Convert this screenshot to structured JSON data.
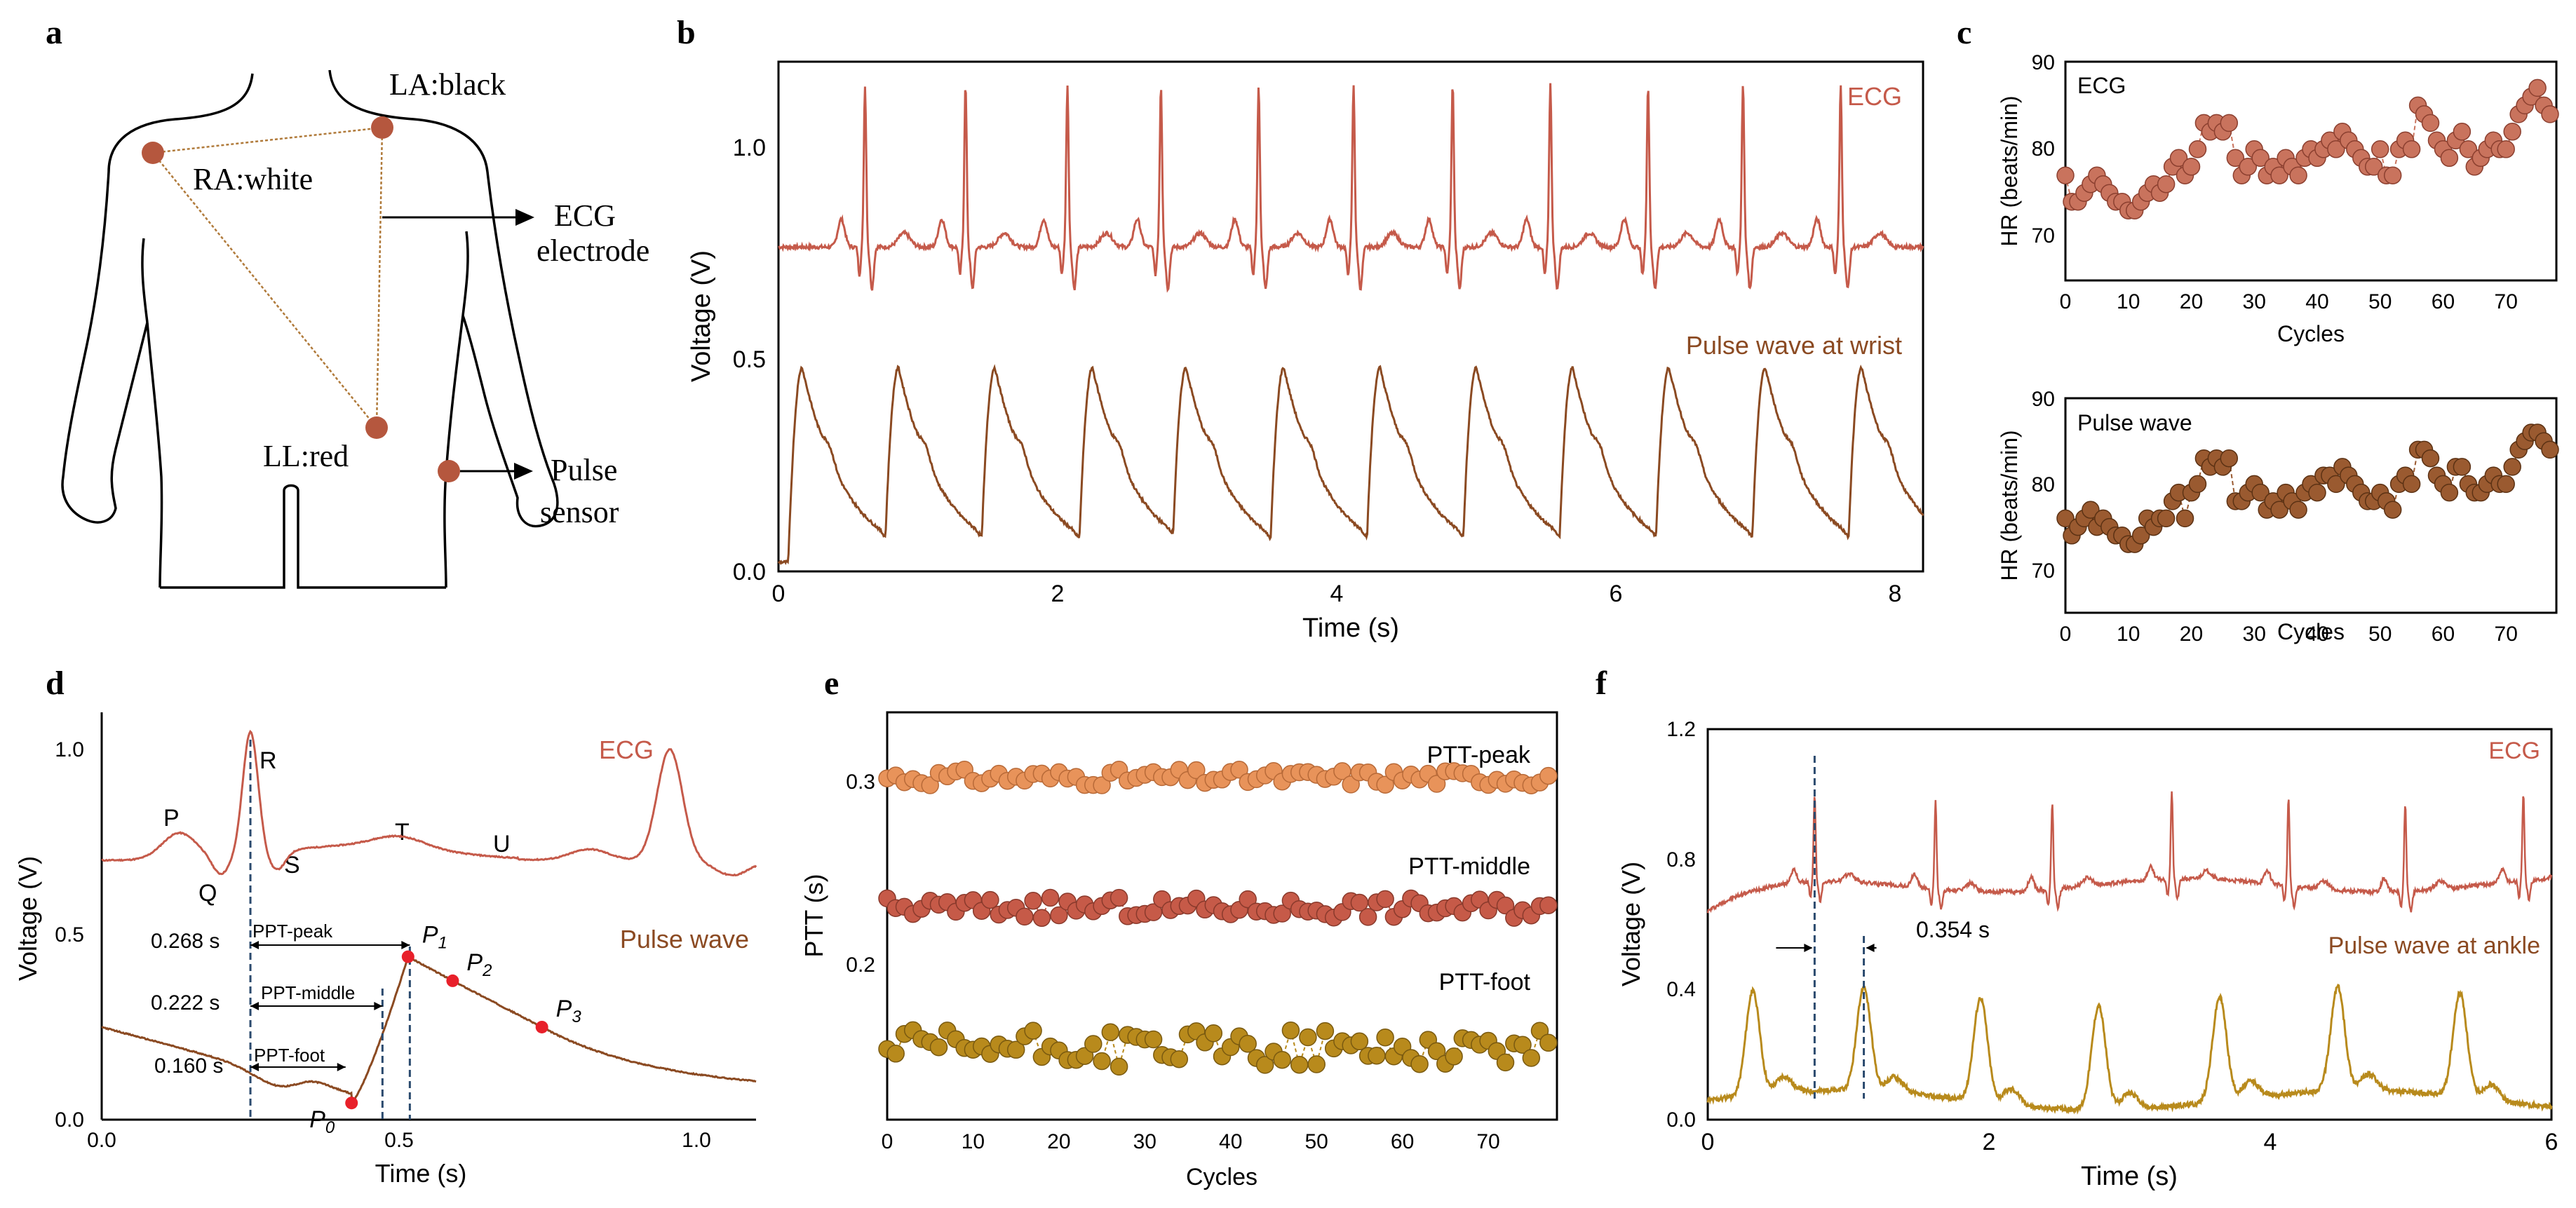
{
  "panels": {
    "a": {
      "letter": "a"
    },
    "b": {
      "letter": "b"
    },
    "c": {
      "letter": "c"
    },
    "d": {
      "letter": "d"
    },
    "e": {
      "letter": "e"
    },
    "f": {
      "letter": "f"
    }
  },
  "colors": {
    "ecg": "#c55a4a",
    "pulse": "#8b4a22",
    "ptt_peak": "#e8935a",
    "ptt_middle": "#c65a48",
    "ptt_foot": "#b88a1c",
    "electrode": "#b5573e",
    "body_line": "#000000",
    "triangle": "#b07a3a",
    "dashed": "#2b4a6e",
    "marker": "#e8202a"
  },
  "body_diagram": {
    "la_label": "LA:black",
    "ra_label": "RA:white",
    "ll_label": "LL:red",
    "ecg_label_1": "ECG",
    "ecg_label_2": "electrode",
    "pulse_label_1": "Pulse",
    "pulse_label_2": "sensor"
  },
  "chart_data": [
    {
      "id": "b",
      "type": "line",
      "xlabel": "Time (s)",
      "ylabel": "Voltage (V)",
      "xlim": [
        0,
        8.2
      ],
      "ylim": [
        0,
        1.1
      ],
      "xticks": [
        "0",
        "2",
        "4",
        "6",
        "8"
      ],
      "yticks": [
        "0.0",
        "0.5",
        "1.0"
      ],
      "series": [
        {
          "name": "ECG",
          "baseline": 0.7,
          "r_peak": 1.0,
          "beats_r_time": [
            0.62,
            1.34,
            2.07,
            2.74,
            3.44,
            4.12,
            4.83,
            5.53,
            6.23,
            6.91,
            7.61
          ]
        },
        {
          "name": "Pulse wave at wrist",
          "peak": 0.44,
          "foot": 0.02,
          "beats_peak_time": [
            0.17,
            0.86,
            1.55,
            2.25,
            2.92,
            3.62,
            4.31,
            5.0,
            5.69,
            6.38,
            7.07,
            7.76
          ]
        }
      ]
    },
    {
      "id": "c-top",
      "type": "scatter",
      "annotation": "ECG",
      "xlabel": "Cycles",
      "ylabel": "HR (beats/min)",
      "xlim": [
        0,
        78
      ],
      "ylim": [
        65,
        90
      ],
      "xticks": [
        "0",
        "10",
        "20",
        "30",
        "40",
        "50",
        "60",
        "70"
      ],
      "yticks": [
        "70",
        "80",
        "90"
      ],
      "x": [
        0,
        1,
        2,
        3,
        4,
        5,
        6,
        7,
        8,
        9,
        10,
        11,
        12,
        13,
        14,
        15,
        16,
        17,
        18,
        19,
        20,
        21,
        22,
        23,
        24,
        25,
        26,
        27,
        28,
        29,
        30,
        31,
        32,
        33,
        34,
        35,
        36,
        37,
        38,
        39,
        40,
        41,
        42,
        43,
        44,
        45,
        46,
        47,
        48,
        49,
        50,
        51,
        52,
        53,
        54,
        55,
        56,
        57,
        58,
        59,
        60,
        61,
        62,
        63,
        64,
        65,
        66,
        67,
        68,
        69,
        70,
        71,
        72,
        73,
        74,
        75,
        76,
        77
      ],
      "y": [
        77,
        74,
        74,
        75,
        76,
        77,
        76,
        75,
        74,
        74,
        73,
        73,
        74,
        75,
        76,
        75,
        76,
        78,
        79,
        77,
        78,
        80,
        83,
        82,
        83,
        82,
        83,
        79,
        77,
        78,
        80,
        79,
        77,
        78,
        77,
        79,
        78,
        77,
        79,
        80,
        79,
        80,
        81,
        80,
        82,
        81,
        80,
        79,
        78,
        78,
        80,
        77,
        77,
        80,
        81,
        80,
        85,
        84,
        83,
        81,
        80,
        79,
        81,
        82,
        80,
        78,
        79,
        80,
        81,
        80,
        80,
        82,
        84,
        85,
        86,
        87,
        85,
        84
      ]
    },
    {
      "id": "c-bottom",
      "type": "scatter",
      "annotation": "Pulse wave",
      "xlabel": "Cycles",
      "ylabel": "HR (beats/min)",
      "xlim": [
        0,
        78
      ],
      "ylim": [
        65,
        90
      ],
      "xticks": [
        "0",
        "10",
        "20",
        "30",
        "40",
        "50",
        "60",
        "70"
      ],
      "yticks": [
        "70",
        "80",
        "90"
      ],
      "x": [
        0,
        1,
        2,
        3,
        4,
        5,
        6,
        7,
        8,
        9,
        10,
        11,
        12,
        13,
        14,
        15,
        16,
        17,
        18,
        19,
        20,
        21,
        22,
        23,
        24,
        25,
        26,
        27,
        28,
        29,
        30,
        31,
        32,
        33,
        34,
        35,
        36,
        37,
        38,
        39,
        40,
        41,
        42,
        43,
        44,
        45,
        46,
        47,
        48,
        49,
        50,
        51,
        52,
        53,
        54,
        55,
        56,
        57,
        58,
        59,
        60,
        61,
        62,
        63,
        64,
        65,
        66,
        67,
        68,
        69,
        70,
        71,
        72,
        73,
        74,
        75,
        76,
        77
      ],
      "y": [
        76,
        74,
        75,
        76,
        77,
        75,
        76,
        75,
        74,
        74,
        73,
        73,
        74,
        76,
        75,
        76,
        76,
        78,
        79,
        76,
        79,
        80,
        83,
        82,
        83,
        82,
        83,
        78,
        78,
        79,
        80,
        79,
        77,
        78,
        77,
        79,
        78,
        77,
        79,
        80,
        79,
        81,
        81,
        80,
        82,
        81,
        80,
        79,
        78,
        78,
        79,
        78,
        77,
        80,
        81,
        80,
        84,
        84,
        83,
        81,
        80,
        79,
        82,
        82,
        80,
        79,
        79,
        80,
        81,
        80,
        80,
        82,
        84,
        85,
        86,
        86,
        85,
        84
      ]
    },
    {
      "id": "d",
      "type": "line",
      "xlabel": "Time (s)",
      "ylabel": "Voltage (V)",
      "xlim": [
        0,
        1.1
      ],
      "ylim": [
        0,
        1.1
      ],
      "xticks": [
        "0.0",
        "0.5",
        "1.0"
      ],
      "yticks": [
        "0.0",
        "0.5",
        "1.0"
      ],
      "ecg_label": "ECG",
      "pulse_label": "Pulse wave",
      "wave_labels": {
        "P": "P",
        "Q": "Q",
        "R": "R",
        "S": "S",
        "T": "T",
        "U": "U"
      },
      "intervals": [
        {
          "label": "PPT-peak",
          "value": "0.268 s",
          "end": 0.518
        },
        {
          "label": "PPT-middle",
          "value": "0.222 s",
          "end": 0.472
        },
        {
          "label": "PPT-foot",
          "value": "0.160 s",
          "end": 0.41
        }
      ],
      "r_time": 0.25,
      "points": [
        {
          "name": "P",
          "sub": "0",
          "x": 0.42,
          "y": 0.045
        },
        {
          "name": "P",
          "sub": "1",
          "x": 0.515,
          "y": 0.44
        },
        {
          "name": "P",
          "sub": "2",
          "x": 0.59,
          "y": 0.375
        },
        {
          "name": "P",
          "sub": "3",
          "x": 0.74,
          "y": 0.25
        }
      ]
    },
    {
      "id": "e",
      "type": "scatter",
      "xlabel": "Cycles",
      "ylabel": "PTT (s)",
      "xlim": [
        0,
        78
      ],
      "ylim": [
        0.12,
        0.32
      ],
      "xticks": [
        "0",
        "10",
        "20",
        "30",
        "40",
        "50",
        "60",
        "70"
      ],
      "yticks": [
        "0.2",
        "0.3"
      ],
      "series": [
        {
          "name": "PTT-peak",
          "mean": 0.288,
          "spread": 0.004
        },
        {
          "name": "PTT-middle",
          "mean": 0.224,
          "spread": 0.005
        },
        {
          "name": "PTT-foot",
          "mean": 0.155,
          "spread": 0.009
        }
      ]
    },
    {
      "id": "f",
      "type": "line",
      "xlabel": "Time (s)",
      "ylabel": "Voltage (V)",
      "xlim": [
        0,
        6
      ],
      "ylim": [
        0,
        1.2
      ],
      "xticks": [
        "0",
        "2",
        "4",
        "6"
      ],
      "yticks": [
        "0.0",
        "0.4",
        "0.8",
        "1.2"
      ],
      "delay_label": "0.354 s",
      "series": [
        {
          "name": "ECG",
          "baseline": 0.72,
          "r_peak": 1.0,
          "beats_r_time": [
            0.76,
            1.62,
            2.45,
            3.3,
            4.13,
            4.96,
            5.8
          ]
        },
        {
          "name": "Pulse wave at  ankle",
          "peak": 0.4,
          "beats_peak_time": [
            0.32,
            1.11,
            1.94,
            2.78,
            3.64,
            4.48,
            5.35
          ]
        }
      ]
    }
  ]
}
